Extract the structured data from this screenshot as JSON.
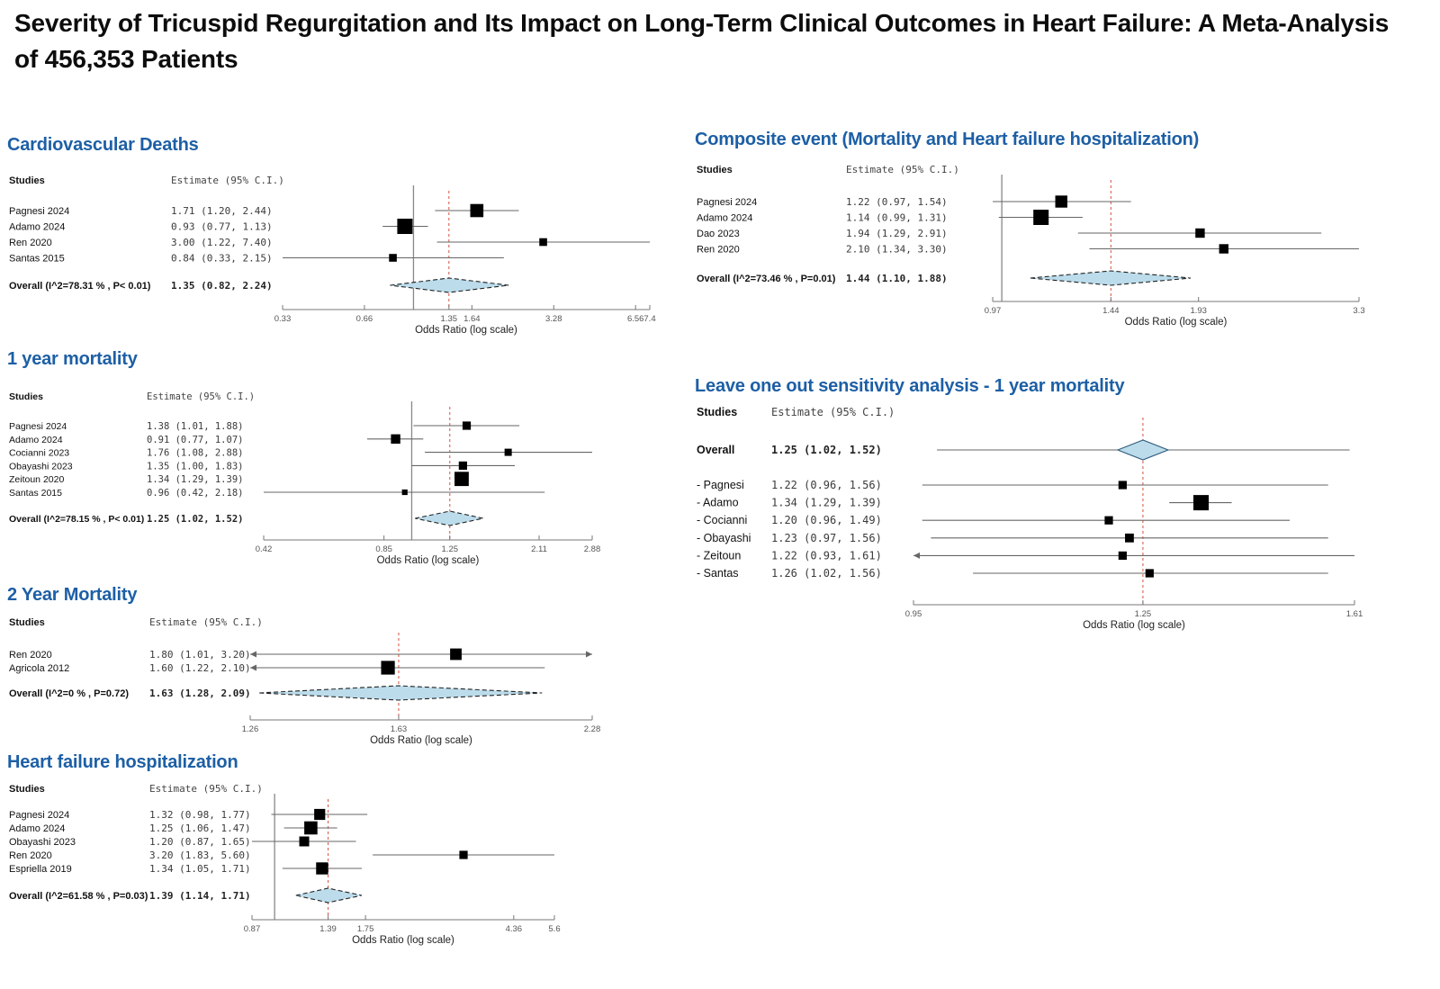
{
  "page_title": "Severity of Tricuspid Regurgitation and Its Impact on Long-Term Clinical Outcomes in Heart Failure: A Meta-Analysis of 456,353 Patients",
  "colors": {
    "heading_blue": "#1d5fa5",
    "title_black": "#0d0d0d",
    "diamond_fill": "#bcdcEB",
    "diamond_stroke": "#222222",
    "ref_line_red": "#d9604f",
    "null_line_gray": "#888888",
    "ci_line": "#666666",
    "box_black": "#000000",
    "axis_gray": "#777777",
    "tick_text": "#555555",
    "estimate_text": "#3a3a3a"
  },
  "chart_data": [
    {
      "id": "cv",
      "type": "forest",
      "title": "Cardiovascular Deaths",
      "studies_header": "Studies",
      "estimate_header": "Estimate (95% C.I.)",
      "xlabel": "Odds Ratio (log scale)",
      "xlim": [
        0.33,
        7.4
      ],
      "ticks": [
        "0.33",
        "0.66",
        "1.35",
        "1.64",
        "3.28",
        "6.56",
        "7.4"
      ],
      "null_line": 1,
      "ref_line": 1.35,
      "legend_position": "none",
      "grid": false,
      "rows": [
        {
          "study": "Pagnesi 2024",
          "est_label": "1.71 (1.20, 2.44)",
          "est": 1.71,
          "lo": 1.2,
          "hi": 2.44,
          "w": 0.8
        },
        {
          "study": "Adamo 2024",
          "est_label": "0.93 (0.77, 1.13)",
          "est": 0.93,
          "lo": 0.77,
          "hi": 1.13,
          "w": 1.0
        },
        {
          "study": "Ren 2020",
          "est_label": "3.00 (1.22, 7.40)",
          "est": 3.0,
          "lo": 1.22,
          "hi": 7.4,
          "w": 0.3
        },
        {
          "study": "Santas 2015",
          "est_label": "0.84 (0.33, 2.15)",
          "est": 0.84,
          "lo": 0.33,
          "hi": 2.15,
          "w": 0.3
        }
      ],
      "overall": {
        "study": "Overall (I^2=78.31 % , P< 0.01)",
        "est_label": "1.35 (0.82, 2.24)",
        "est": 1.35,
        "lo": 0.82,
        "hi": 2.24
      }
    },
    {
      "id": "composite",
      "type": "forest",
      "title": "Composite event (Mortality and Heart failure hospitalization)",
      "studies_header": "Studies",
      "estimate_header": "Estimate (95% C.I.)",
      "xlabel": "Odds Ratio (log scale)",
      "xlim": [
        0.97,
        3.3
      ],
      "ticks": [
        "0.97",
        "1.44",
        "1.93",
        "3.3"
      ],
      "null_line": 1,
      "ref_line": 1.44,
      "legend_position": "none",
      "grid": false,
      "rows": [
        {
          "study": "Pagnesi 2024",
          "est_label": "1.22 (0.97, 1.54)",
          "est": 1.22,
          "lo": 0.97,
          "hi": 1.54,
          "w": 0.7
        },
        {
          "study": "Adamo 2024",
          "est_label": "1.14 (0.99, 1.31)",
          "est": 1.14,
          "lo": 0.99,
          "hi": 1.31,
          "w": 1.0
        },
        {
          "study": "Dao 2023",
          "est_label": "1.94 (1.29, 2.91)",
          "est": 1.94,
          "lo": 1.29,
          "hi": 2.91,
          "w": 0.45
        },
        {
          "study": "Ren 2020",
          "est_label": "2.10 (1.34, 3.30)",
          "est": 2.1,
          "lo": 1.34,
          "hi": 3.3,
          "w": 0.45
        }
      ],
      "overall": {
        "study": "Overall (I^2=73.46 % , P=0.01)",
        "est_label": "1.44 (1.10, 1.88)",
        "est": 1.44,
        "lo": 1.1,
        "hi": 1.88
      }
    },
    {
      "id": "one_year",
      "type": "forest",
      "title": "1 year mortality",
      "studies_header": "Studies",
      "estimate_header": "Estimate (95% C.I.)",
      "xlabel": "Odds Ratio (log scale)",
      "xlim": [
        0.42,
        2.88
      ],
      "ticks": [
        "0.42",
        "0.85",
        "1.25",
        "2.11",
        "2.88"
      ],
      "null_line": 1,
      "ref_line": 1.25,
      "legend_position": "none",
      "grid": false,
      "rows": [
        {
          "study": "Pagnesi 2024",
          "est_label": "1.38 (1.01, 1.88)",
          "est": 1.38,
          "lo": 1.01,
          "hi": 1.88,
          "w": 0.35
        },
        {
          "study": "Adamo 2024",
          "est_label": "0.91 (0.77, 1.07)",
          "est": 0.91,
          "lo": 0.77,
          "hi": 1.07,
          "w": 0.45
        },
        {
          "study": "Cocianni 2023",
          "est_label": "1.76 (1.08, 2.88)",
          "est": 1.76,
          "lo": 1.08,
          "hi": 2.88,
          "w": 0.25
        },
        {
          "study": "Obayashi 2023",
          "est_label": "1.35 (1.00, 1.83)",
          "est": 1.35,
          "lo": 1.0,
          "hi": 1.83,
          "w": 0.35
        },
        {
          "study": "Zeitoun 2020",
          "est_label": "1.34 (1.29, 1.39)",
          "est": 1.34,
          "lo": 1.29,
          "hi": 1.39,
          "w": 0.9
        },
        {
          "study": "Santas 2015",
          "est_label": "0.96 (0.42, 2.18)",
          "est": 0.96,
          "lo": 0.42,
          "hi": 2.18,
          "w": 0.1
        }
      ],
      "overall": {
        "study": "Overall (I^2=78.15 % , P< 0.01)",
        "est_label": "1.25 (1.02, 1.52)",
        "est": 1.25,
        "lo": 1.02,
        "hi": 1.52
      }
    },
    {
      "id": "loo",
      "type": "forest",
      "title": "Leave one out sensitivity analysis - 1 year mortality",
      "studies_header": "Studies",
      "estimate_header": "Estimate (95% C.I.)",
      "xlabel": "Odds Ratio (log scale)",
      "xlim": [
        0.95,
        1.61
      ],
      "ticks": [
        "0.95",
        "1.25",
        "1.61"
      ],
      "null_line": null,
      "ref_line": 1.25,
      "legend_position": "none",
      "grid": false,
      "overall_first": true,
      "rows": [
        {
          "study": "- Pagnesi",
          "est_label": "1.22 (0.96, 1.56)",
          "est": 1.22,
          "lo": 0.96,
          "hi": 1.56,
          "w": 0.35
        },
        {
          "study": "- Adamo",
          "est_label": "1.34 (1.29, 1.39)",
          "est": 1.34,
          "lo": 1.29,
          "hi": 1.39,
          "w": 1.0
        },
        {
          "study": "- Cocianni",
          "est_label": "1.20 (0.96, 1.49)",
          "est": 1.2,
          "lo": 0.96,
          "hi": 1.49,
          "w": 0.35
        },
        {
          "study": "- Obayashi",
          "est_label": "1.23 (0.97, 1.56)",
          "est": 1.23,
          "lo": 0.97,
          "hi": 1.56,
          "w": 0.4
        },
        {
          "study": "- Zeitoun",
          "est_label": "1.22 (0.93, 1.61)",
          "est": 1.22,
          "lo": 0.93,
          "hi": 1.61,
          "w": 0.35,
          "clip_lo": true
        },
        {
          "study": "- Santas",
          "est_label": "1.26 (1.02, 1.56)",
          "est": 1.26,
          "lo": 1.02,
          "hi": 1.56,
          "w": 0.35
        }
      ],
      "overall": {
        "study": "Overall",
        "est_label": "1.25 (1.02, 1.52)",
        "est": 1.25,
        "lo": 1.02,
        "hi": 1.52
      }
    },
    {
      "id": "two_year",
      "type": "forest",
      "title": "2 Year Mortality",
      "studies_header": "Studies",
      "estimate_header": "Estimate (95% C.I.)",
      "xlabel": "Odds Ratio (log scale)",
      "xlim": [
        1.26,
        2.28
      ],
      "ticks": [
        "1.26",
        "1.63",
        "2.28"
      ],
      "null_line": null,
      "ref_line": 1.63,
      "legend_position": "none",
      "grid": false,
      "rows": [
        {
          "study": "Ren 2020",
          "est_label": "1.80 (1.01, 3.20)",
          "est": 1.8,
          "lo": 1.01,
          "hi": 3.2,
          "w": 0.65,
          "clip_lo": true,
          "clip_hi": true
        },
        {
          "study": "Agricola 2012",
          "est_label": "1.60 (1.22, 2.10)",
          "est": 1.6,
          "lo": 1.22,
          "hi": 2.1,
          "w": 0.85,
          "clip_lo": true
        }
      ],
      "overall": {
        "study": "Overall (I^2=0 % , P=0.72)",
        "est_label": "1.63 (1.28, 2.09)",
        "est": 1.63,
        "lo": 1.28,
        "hi": 2.09
      }
    },
    {
      "id": "hfh",
      "type": "forest",
      "title": "Heart failure hospitalization",
      "studies_header": "Studies",
      "estimate_header": "Estimate (95% C.I.)",
      "xlabel": "Odds Ratio (log scale)",
      "xlim": [
        0.87,
        5.6
      ],
      "ticks": [
        "0.87",
        "1.39",
        "1.75",
        "4.36",
        "5.6"
      ],
      "null_line": 1,
      "ref_line": 1.39,
      "legend_position": "none",
      "grid": false,
      "rows": [
        {
          "study": "Pagnesi 2024",
          "est_label": "1.32 (0.98, 1.77)",
          "est": 1.32,
          "lo": 0.98,
          "hi": 1.77,
          "w": 0.6
        },
        {
          "study": "Adamo 2024",
          "est_label": "1.25 (1.06, 1.47)",
          "est": 1.25,
          "lo": 1.06,
          "hi": 1.47,
          "w": 0.8
        },
        {
          "study": "Obayashi 2023",
          "est_label": "1.20 (0.87, 1.65)",
          "est": 1.2,
          "lo": 0.87,
          "hi": 1.65,
          "w": 0.5
        },
        {
          "study": "Ren 2020",
          "est_label": "3.20 (1.83, 5.60)",
          "est": 3.2,
          "lo": 1.83,
          "hi": 5.6,
          "w": 0.35
        },
        {
          "study": "Espriella 2019",
          "est_label": "1.34 (1.05, 1.71)",
          "est": 1.34,
          "lo": 1.05,
          "hi": 1.71,
          "w": 0.7
        }
      ],
      "overall": {
        "study": "Overall (I^2=61.58 % , P=0.03)",
        "est_label": "1.39 (1.14, 1.71)",
        "est": 1.39,
        "lo": 1.14,
        "hi": 1.71
      }
    }
  ]
}
